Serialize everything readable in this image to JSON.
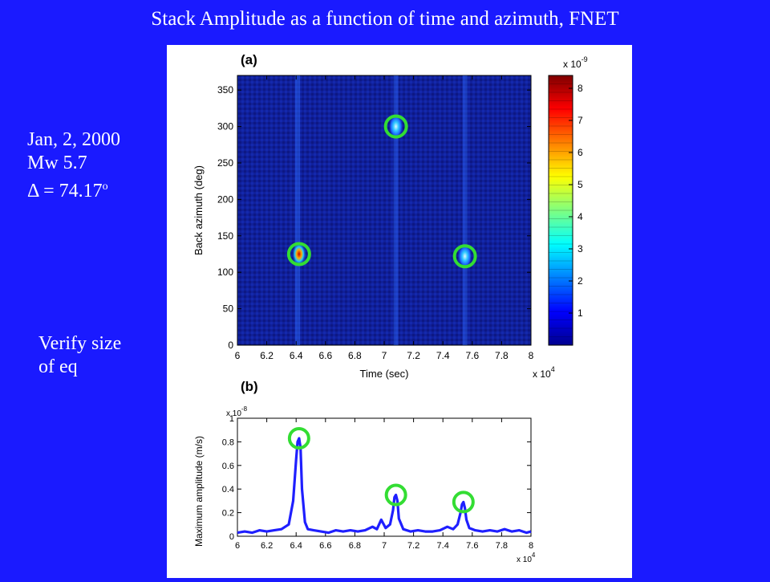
{
  "slide_title": "Stack Amplitude as a function of time and azimuth, FNET",
  "event_info": {
    "date": "Jan, 2, 2000",
    "magnitude": "Mw 5.7",
    "distance_prefix": "Δ = 74.17",
    "distance_unit": "o"
  },
  "note": {
    "line1": "Verify size",
    "line2": "of eq"
  },
  "chart_data": [
    {
      "panel_label": "(a)",
      "type": "heatmap",
      "xlabel": "Time (sec)",
      "ylabel": "Back azimuth (deg)",
      "x_exponent_label": "x 10",
      "x_exponent": "4",
      "xlim": [
        6,
        8
      ],
      "ylim": [
        0,
        370
      ],
      "x_ticks": [
        "6",
        "6.2",
        "6.4",
        "6.6",
        "6.8",
        "7",
        "7.2",
        "7.4",
        "7.6",
        "7.8",
        "8"
      ],
      "y_ticks": [
        "0",
        "50",
        "100",
        "150",
        "200",
        "250",
        "300",
        "350"
      ],
      "colorbar": {
        "exponent_label": "x 10",
        "exponent": "-9",
        "range": [
          0,
          8.4
        ],
        "ticks": [
          "1",
          "2",
          "3",
          "4",
          "5",
          "6",
          "7",
          "8"
        ]
      },
      "background_level": 0.5,
      "hotspots": [
        {
          "x": 6.42,
          "y": 125,
          "value": 8.3,
          "circled": true
        },
        {
          "x": 7.08,
          "y": 300,
          "value": 3.2,
          "circled": true
        },
        {
          "x": 7.55,
          "y": 122,
          "value": 2.9,
          "circled": true
        }
      ],
      "streaks": [
        {
          "x": 6.41,
          "value": 1.5
        },
        {
          "x": 7.08,
          "value": 1.0
        },
        {
          "x": 7.55,
          "value": 1.0
        }
      ]
    },
    {
      "panel_label": "(b)",
      "type": "line",
      "xlabel": "",
      "ylabel": "Maximum amplitude (m/s)",
      "x_exponent_label": "x 10",
      "x_exponent": "4",
      "y_exponent_label": "x 10",
      "y_exponent": "-8",
      "xlim": [
        6,
        8
      ],
      "ylim": [
        0,
        1
      ],
      "x_ticks": [
        "6",
        "6.2",
        "6.4",
        "6.6",
        "6.8",
        "7",
        "7.2",
        "7.4",
        "7.6",
        "7.8",
        "8"
      ],
      "y_ticks": [
        "0",
        "0.2",
        "0.4",
        "0.6",
        "0.8",
        "1"
      ],
      "series": [
        {
          "x": [
            6.0,
            6.05,
            6.1,
            6.15,
            6.2,
            6.25,
            6.3,
            6.35,
            6.38,
            6.4,
            6.41,
            6.42,
            6.43,
            6.44,
            6.46,
            6.48,
            6.52,
            6.57,
            6.62,
            6.67,
            6.72,
            6.77,
            6.82,
            6.87,
            6.92,
            6.95,
            6.98,
            7.01,
            7.04,
            7.06,
            7.07,
            7.08,
            7.09,
            7.1,
            7.13,
            7.18,
            7.23,
            7.28,
            7.33,
            7.38,
            7.43,
            7.47,
            7.5,
            7.52,
            7.53,
            7.54,
            7.55,
            7.56,
            7.58,
            7.62,
            7.67,
            7.72,
            7.77,
            7.82,
            7.87,
            7.92,
            7.97,
            8.0
          ],
          "y": [
            0.03,
            0.04,
            0.03,
            0.05,
            0.04,
            0.05,
            0.06,
            0.1,
            0.3,
            0.65,
            0.8,
            0.83,
            0.75,
            0.4,
            0.12,
            0.06,
            0.05,
            0.04,
            0.03,
            0.05,
            0.04,
            0.05,
            0.04,
            0.05,
            0.08,
            0.06,
            0.14,
            0.07,
            0.1,
            0.22,
            0.33,
            0.35,
            0.3,
            0.15,
            0.06,
            0.04,
            0.05,
            0.04,
            0.04,
            0.05,
            0.08,
            0.06,
            0.1,
            0.2,
            0.27,
            0.29,
            0.24,
            0.14,
            0.07,
            0.05,
            0.04,
            0.05,
            0.04,
            0.06,
            0.04,
            0.05,
            0.03,
            0.04
          ]
        }
      ],
      "circled_peaks": [
        {
          "x": 6.42,
          "y": 0.83
        },
        {
          "x": 7.08,
          "y": 0.35
        },
        {
          "x": 7.54,
          "y": 0.29
        }
      ]
    }
  ],
  "colors": {
    "slide_background": "#1a1aff",
    "marker_circle": "#33dd33",
    "line_series": "#1f1fff"
  }
}
